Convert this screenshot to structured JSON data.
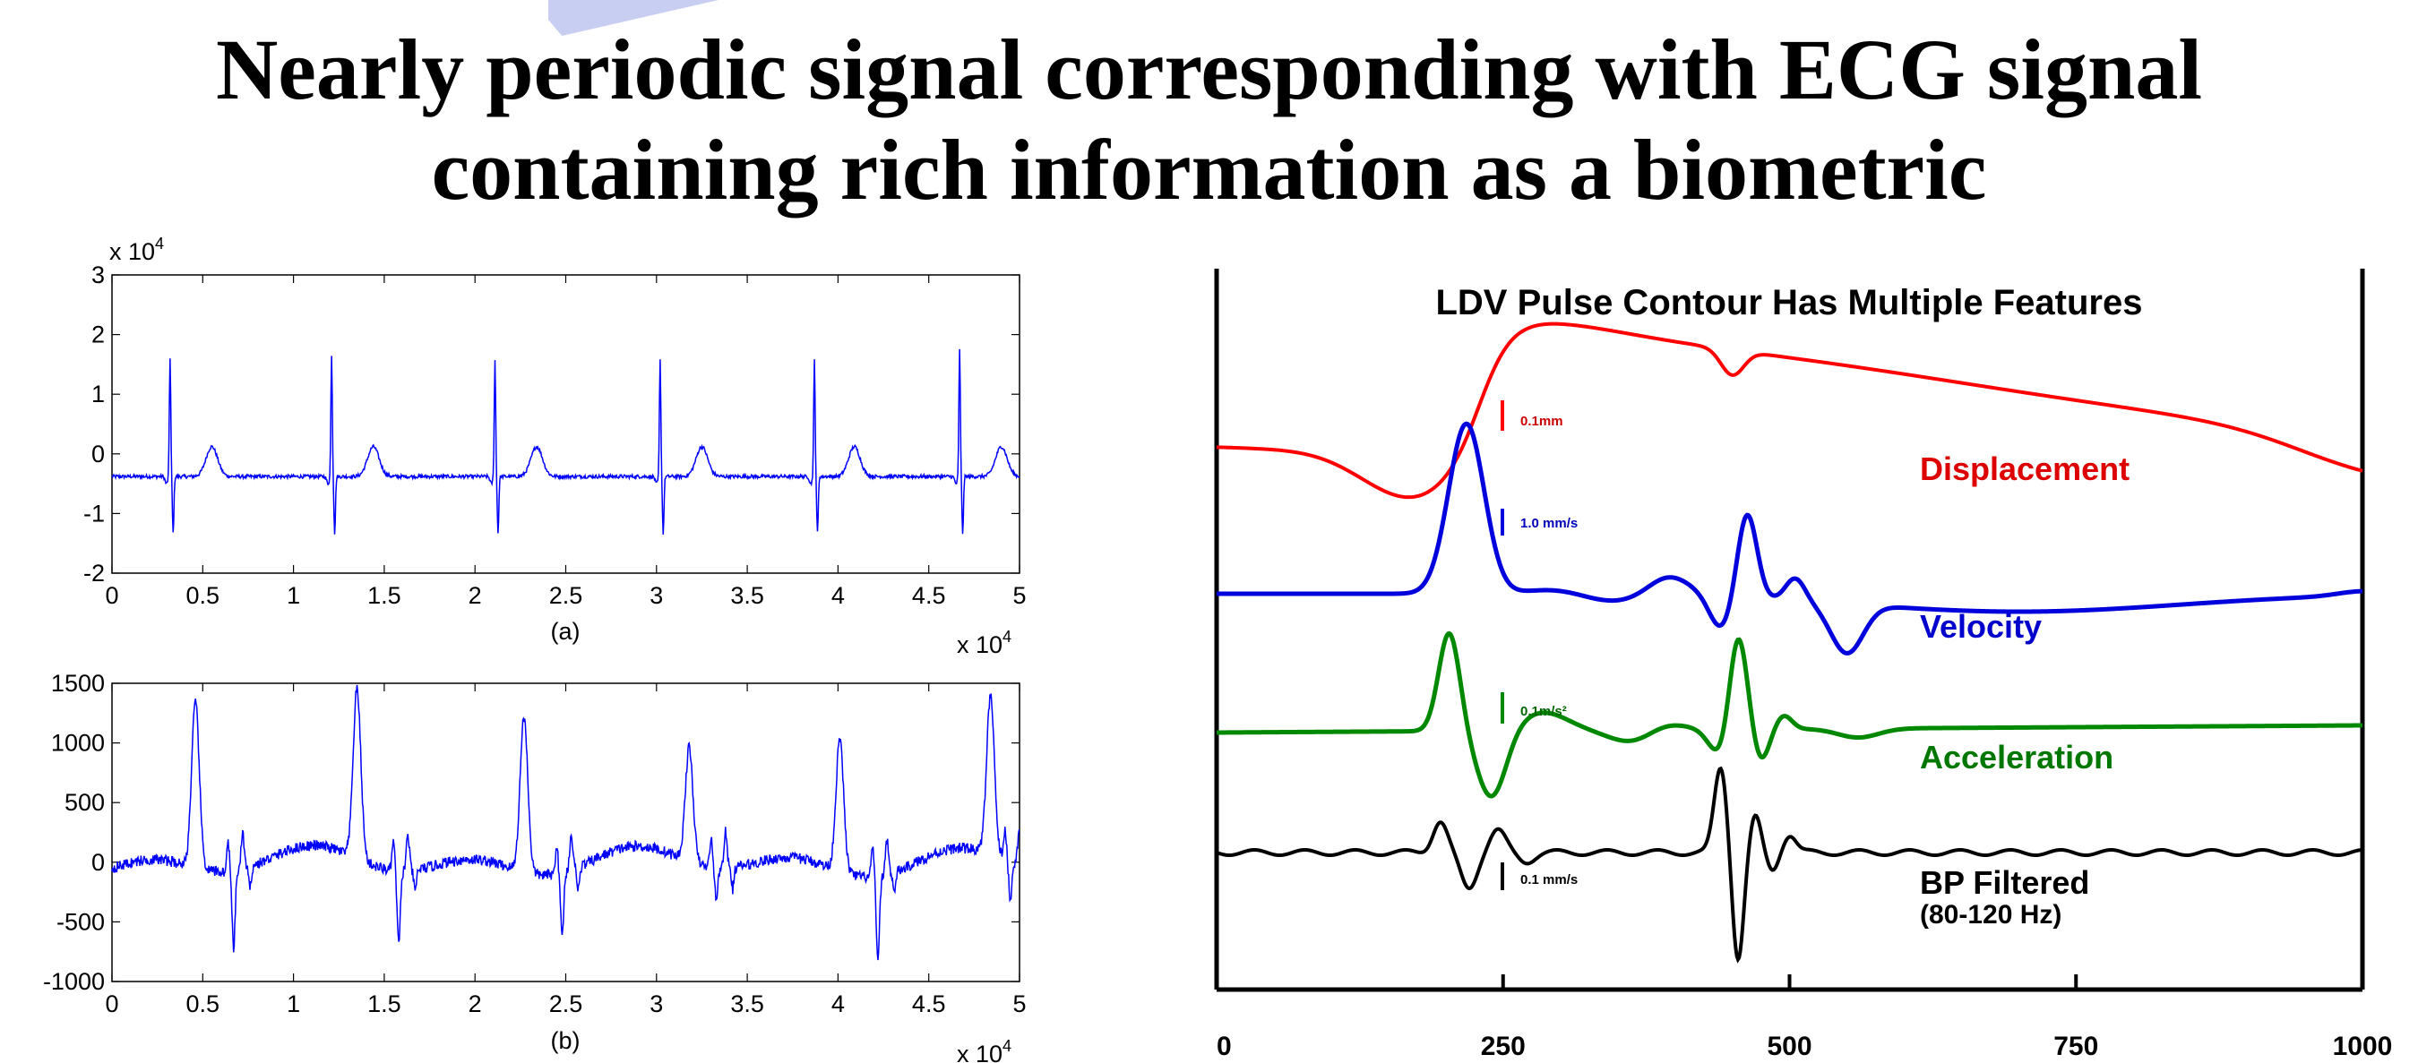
{
  "title": {
    "line1": "Nearly periodic signal corresponding with ECG signal",
    "line2": "containing rich information as a biometric"
  },
  "chart_data": [
    {
      "type": "line",
      "panel_label": "(a)",
      "x_exponent_label": "x 10",
      "x_exponent_power": "4",
      "y_exponent_label": "x 10",
      "y_exponent_power": "4",
      "xlim": [
        0,
        5
      ],
      "ylim": [
        -2,
        3
      ],
      "xticks": [
        "0",
        "0.5",
        "1",
        "1.5",
        "2",
        "2.5",
        "3",
        "3.5",
        "4",
        "4.5",
        "5"
      ],
      "yticks": [
        "-2",
        "-1",
        "0",
        "1",
        "2",
        "3"
      ],
      "line_color": "#0000ff",
      "baseline": -0.38,
      "noise": 0.03,
      "beats": [
        {
          "r": 0.32,
          "amp": 2.0,
          "t": 0.55,
          "tamp": 0.5
        },
        {
          "r": 1.21,
          "amp": 2.05,
          "t": 1.44,
          "tamp": 0.5
        },
        {
          "r": 2.11,
          "amp": 1.95,
          "t": 2.34,
          "tamp": 0.5
        },
        {
          "r": 3.02,
          "amp": 1.95,
          "t": 3.25,
          "tamp": 0.5
        },
        {
          "r": 3.87,
          "amp": 1.95,
          "t": 4.09,
          "tamp": 0.5
        },
        {
          "r": 4.67,
          "amp": 2.15,
          "t": 4.9,
          "tamp": 0.5
        }
      ]
    },
    {
      "type": "line",
      "panel_label": "(b)",
      "x_exponent_label": "x 10",
      "x_exponent_power": "4",
      "xlim": [
        0,
        5
      ],
      "ylim": [
        -1000,
        1500
      ],
      "xticks": [
        "0",
        "0.5",
        "1",
        "1.5",
        "2",
        "2.5",
        "3",
        "3.5",
        "4",
        "4.5",
        "5"
      ],
      "yticks": [
        "-1000",
        "-500",
        "0",
        "500",
        "1000",
        "1500"
      ],
      "line_color": "#0000ff",
      "baseline": 0,
      "noise": 45,
      "beats": [
        {
          "p": 0.46,
          "amp": 1380,
          "n": 0.67,
          "namp": -650
        },
        {
          "p": 1.35,
          "amp": 1420,
          "n": 1.58,
          "namp": -620
        },
        {
          "p": 2.27,
          "amp": 1300,
          "n": 2.48,
          "namp": -520
        },
        {
          "p": 3.18,
          "amp": 950,
          "n": 3.33,
          "namp": -250
        },
        {
          "p": 4.01,
          "amp": 1100,
          "n": 4.22,
          "namp": -720
        },
        {
          "p": 4.84,
          "amp": 1320,
          "n": 4.95,
          "namp": -320
        }
      ]
    },
    {
      "type": "line",
      "title": "LDV Pulse Contour Has Multiple Features",
      "xlim": [
        0,
        1000
      ],
      "xticks": [
        "0",
        "250",
        "500",
        "750",
        "1000"
      ],
      "series": [
        {
          "name": "Displacement",
          "color": "#ff0000",
          "scale_label": "0.1mm"
        },
        {
          "name": "Velocity",
          "color": "#0000dd",
          "scale_label": "1.0 mm/s"
        },
        {
          "name": "Acceleration",
          "color": "#008800",
          "scale_label": "0.1m/s²"
        },
        {
          "name": "BP Filtered",
          "subtitle": "(80-120 Hz)",
          "color": "#000000",
          "scale_label": "0.1 mm/s"
        }
      ]
    }
  ]
}
